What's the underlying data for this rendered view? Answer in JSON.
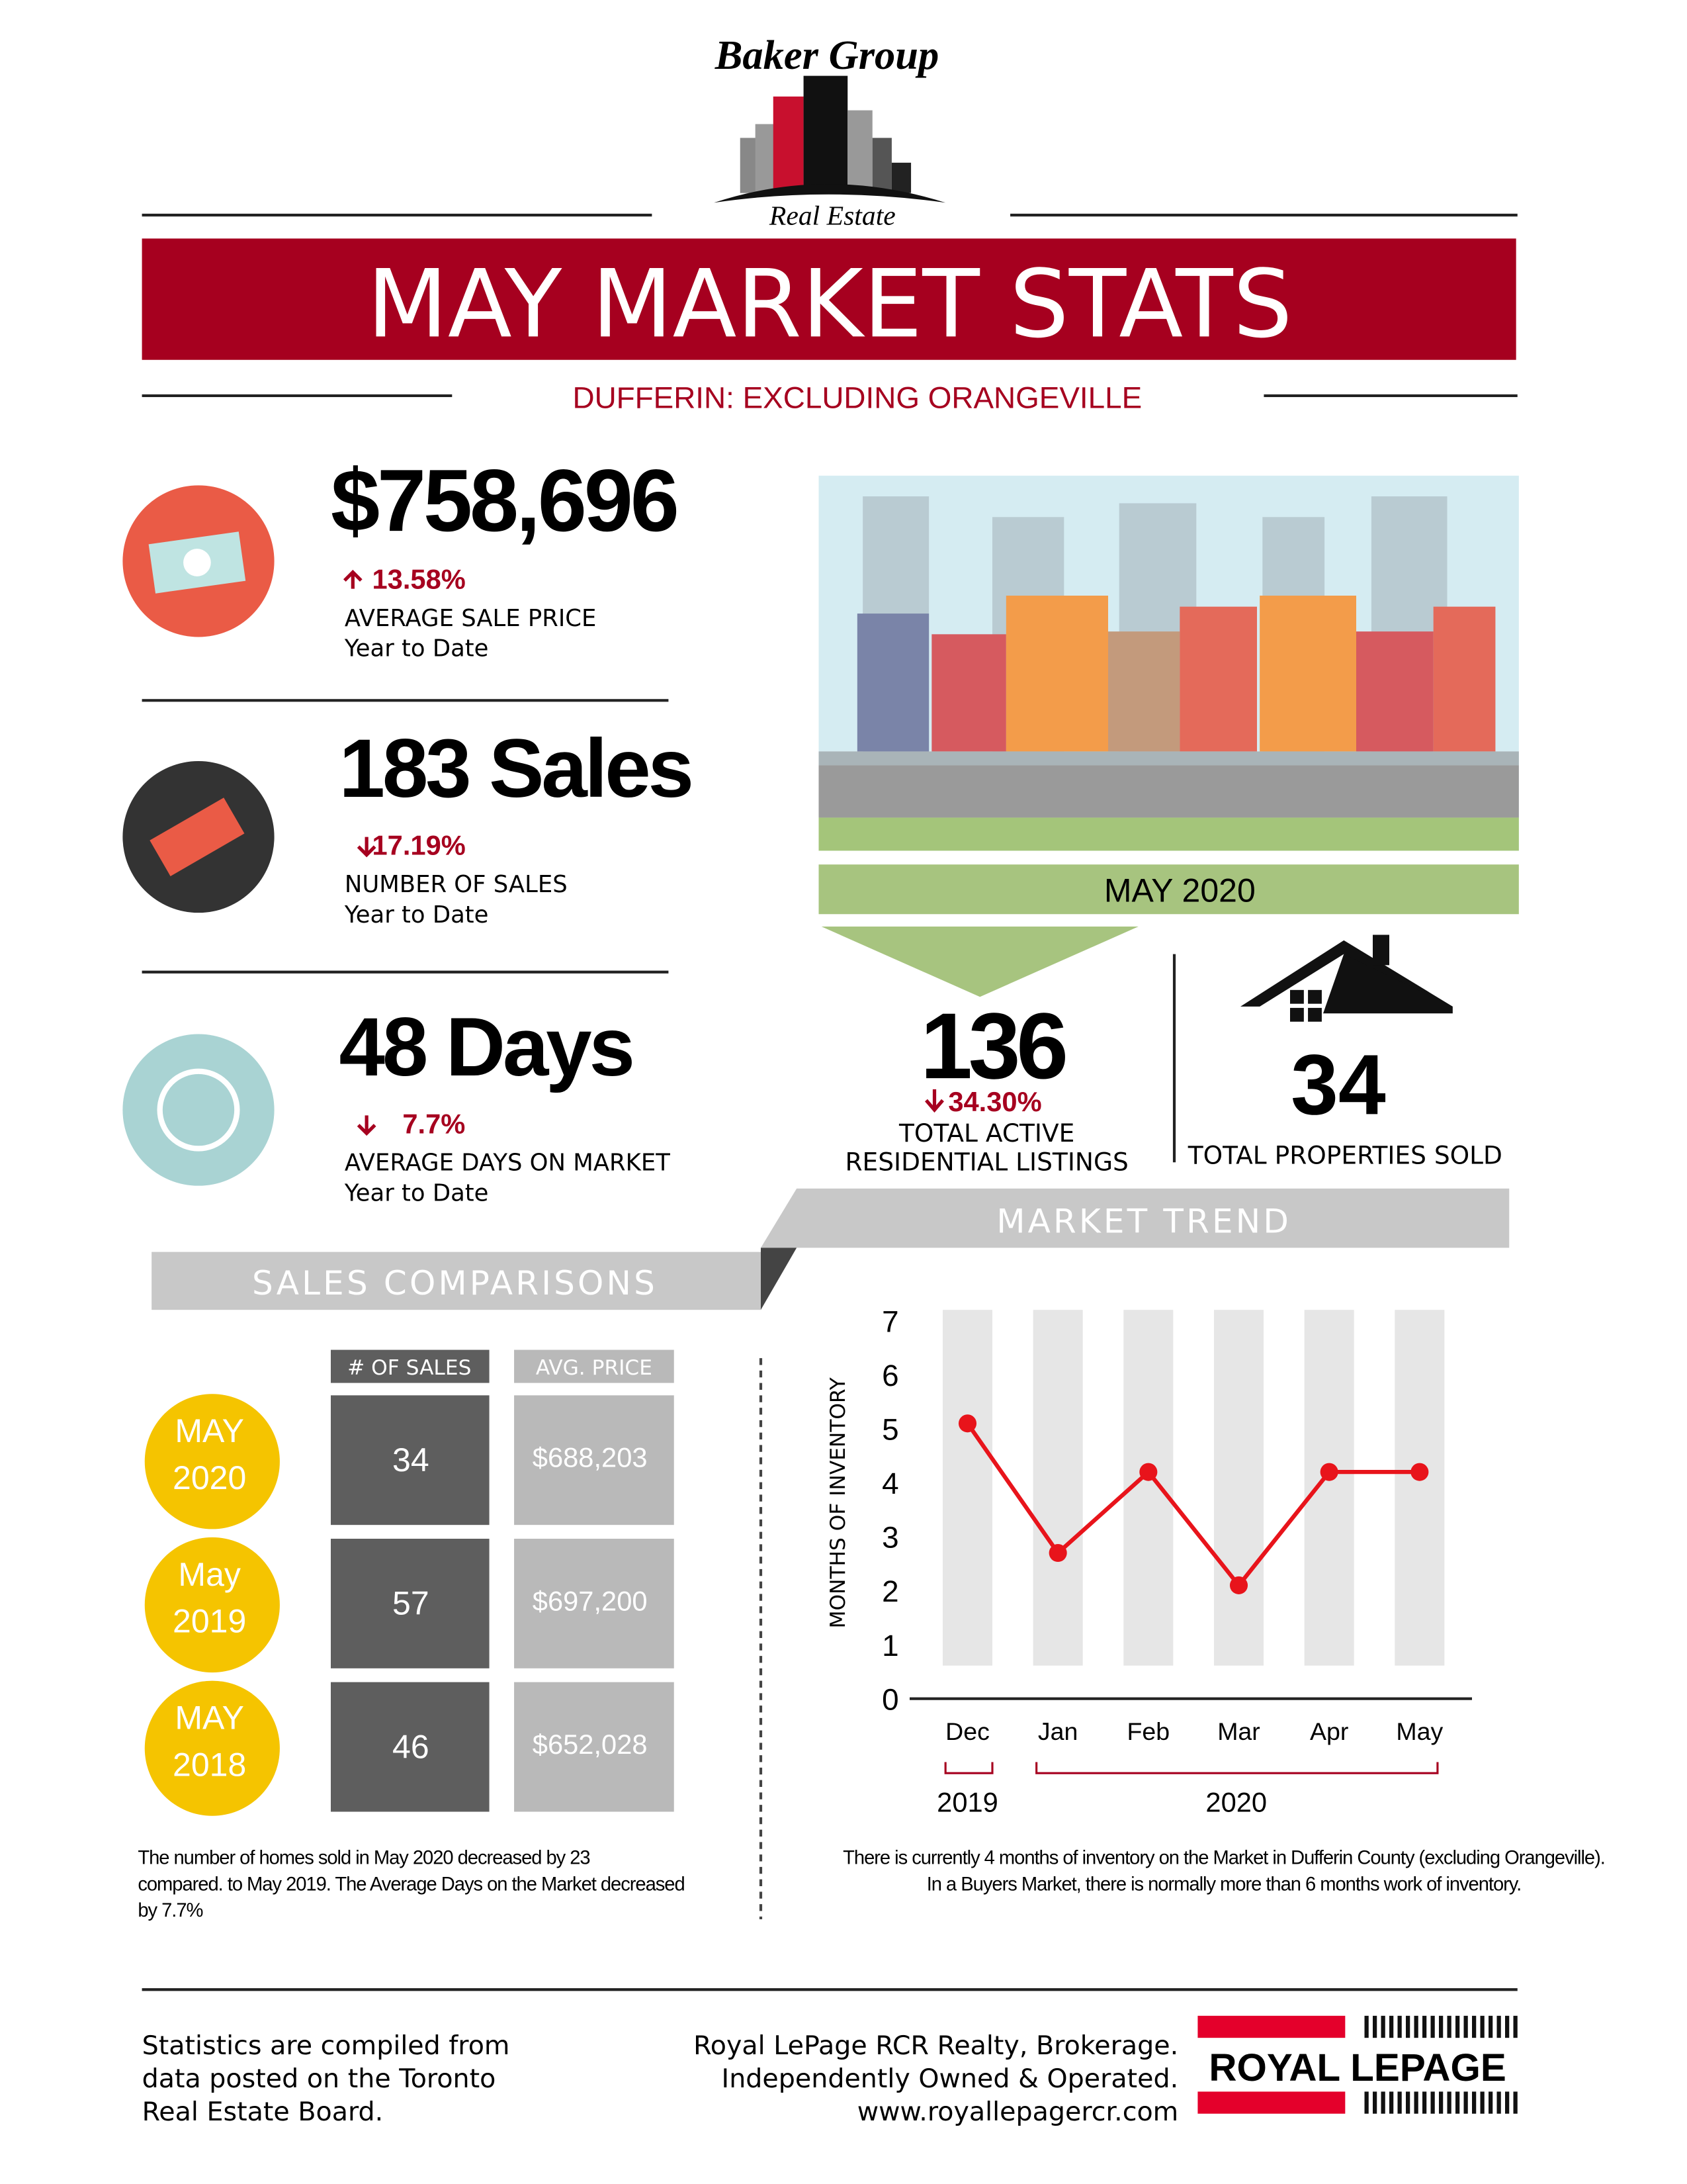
{
  "logo": {
    "name": "Baker Group",
    "tagline": "Real Estate"
  },
  "title": "MAY MARKET STATS",
  "subtitle": "DUFFERIN: EXCLUDING ORANGEVILLE",
  "stats": [
    {
      "value": "$758,696",
      "change": "13.58%",
      "label": "AVERAGE SALE PRICE",
      "period": "Year to Date"
    },
    {
      "value": "183 Sales",
      "change": "17.19%",
      "label": "NUMBER OF SALES",
      "period": "Year to Date"
    },
    {
      "value": "48 Days",
      "change": "7.7%",
      "label": "AVERAGE DAYS ON MARKET",
      "period": "Year to Date"
    }
  ],
  "banner": "MAY  2020",
  "listings": {
    "value": "136",
    "change": "34.30%",
    "label": [
      "TOTAL ACTIVE",
      "RESIDENTIAL LISTINGS"
    ]
  },
  "sold": {
    "value": "34",
    "label": "TOTAL PROPERTIES SOLD"
  },
  "sales_comparisons": {
    "heading": "SALES COMPARISONS",
    "columns": [
      "# OF SALES",
      "AVG. PRICE"
    ],
    "rows": [
      {
        "period": [
          "MAY",
          "2020"
        ],
        "sales": "34",
        "price": "$688,203"
      },
      {
        "period": [
          "May",
          "2019"
        ],
        "sales": "57",
        "price": "$697,200"
      },
      {
        "period": [
          "MAY",
          "2018"
        ],
        "sales": "46",
        "price": "$652,028"
      }
    ],
    "note": [
      "The number of homes sold in May 2020 decreased by 23",
      "compared. to May 2019. The Average Days on the Market decreased",
      "by 7.7%"
    ]
  },
  "chart_data": {
    "type": "line",
    "title": "MARKET TREND",
    "y_label": "MONTHS OF INVENTORY",
    "categories": [
      "Dec",
      "Jan",
      "Feb",
      "Mar",
      "Apr",
      "May"
    ],
    "year_groups": [
      "2019",
      "2020"
    ],
    "values": [
      5.1,
      2.7,
      4.2,
      2.1,
      4.2,
      4.2
    ],
    "color": "#e8141b",
    "ylim": [
      0,
      7
    ],
    "yticks": [
      0,
      1,
      2,
      3,
      4,
      5,
      6,
      7
    ],
    "note": [
      "There is currently 4 months of inventory on the Market in Dufferin County (excluding Orangeville).",
      "In a Buyers Market, there is normally more than 6 months work of inventory."
    ]
  },
  "footer": {
    "source": [
      "Statistics are compiled from",
      "data posted on the Toronto",
      "Real Estate Board."
    ],
    "brokerage": [
      "Royal LePage RCR Realty, Brokerage.",
      "Independently Owned & Operated.",
      "www.royallepagercr.com"
    ],
    "brand": "ROYAL LEPAGE"
  }
}
